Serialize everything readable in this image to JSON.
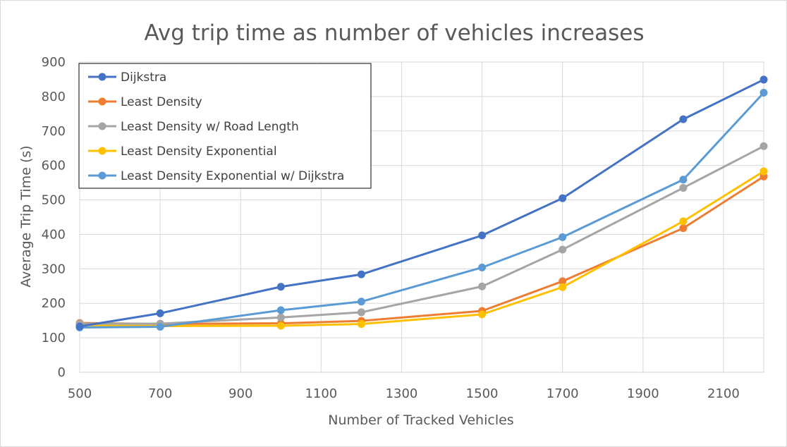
{
  "chart_data": {
    "type": "line",
    "title": "Avg trip time as number of vehicles increases",
    "xlabel": "Number of Tracked Vehicles",
    "ylabel": "Average Trip Time (s)",
    "xlim": [
      500,
      2200
    ],
    "ylim": [
      0,
      900
    ],
    "x_ticks": [
      500,
      700,
      900,
      1100,
      1300,
      1500,
      1700,
      1900,
      2100
    ],
    "y_ticks": [
      0,
      100,
      200,
      300,
      400,
      500,
      600,
      700,
      800,
      900
    ],
    "grid": true,
    "legend_position": "top-left",
    "x": [
      500,
      700,
      1000,
      1200,
      1500,
      1700,
      2000,
      2200
    ],
    "series": [
      {
        "name": "Dijkstra",
        "color": "#4472C4",
        "values": [
          133,
          171,
          248,
          284,
          397,
          505,
          734,
          849
        ]
      },
      {
        "name": "Least Density",
        "color": "#ED7D31",
        "values": [
          143,
          140,
          142,
          149,
          178,
          264,
          418,
          568
        ]
      },
      {
        "name": "Least Density w/ Road Length",
        "color": "#A5A5A5",
        "values": [
          141,
          141,
          159,
          174,
          249,
          356,
          535,
          656
        ]
      },
      {
        "name": "Least Density Exponential",
        "color": "#FFC000",
        "values": [
          137,
          134,
          135,
          140,
          168,
          247,
          438,
          583
        ]
      },
      {
        "name": "Least Density Exponential w/ Dijkstra",
        "color": "#5B9BD5",
        "values": [
          130,
          132,
          180,
          205,
          304,
          392,
          559,
          811
        ]
      }
    ]
  }
}
